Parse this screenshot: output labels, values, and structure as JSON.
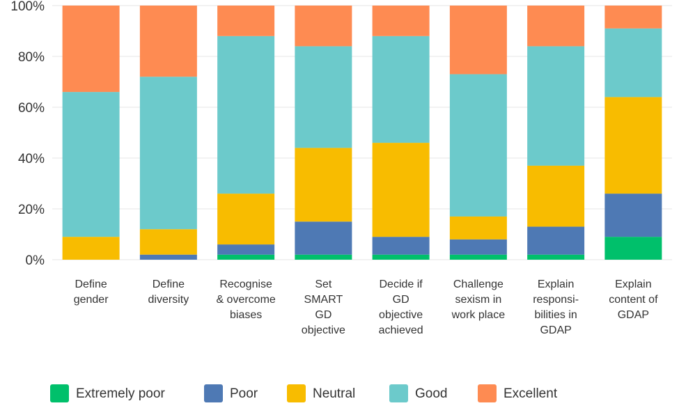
{
  "chart_data": {
    "type": "bar",
    "stacked": true,
    "categories": [
      [
        "Define",
        "gender"
      ],
      [
        "Define",
        "diversity"
      ],
      [
        "Recognise",
        "& overcome",
        "biases"
      ],
      [
        "Set",
        "SMART",
        "GD",
        "objective"
      ],
      [
        "Decide if",
        "GD",
        "objective",
        "achieved"
      ],
      [
        "Challenge",
        "sexism in",
        "work place"
      ],
      [
        "Explain",
        "responsi-",
        "bilities in",
        "GDAP"
      ],
      [
        "Explain",
        "content of",
        "GDAP"
      ]
    ],
    "series": [
      {
        "name": "Extremely poor",
        "color": "#00c06b",
        "values": [
          0,
          0,
          2,
          2,
          2,
          2,
          2,
          9
        ]
      },
      {
        "name": "Poor",
        "color": "#4e79b4",
        "values": [
          0,
          2,
          4,
          13,
          7,
          6,
          11,
          17
        ]
      },
      {
        "name": "Neutral",
        "color": "#f8bc00",
        "values": [
          9,
          10,
          20,
          29,
          37,
          9,
          24,
          38
        ]
      },
      {
        "name": "Good",
        "color": "#6ccacb",
        "values": [
          57,
          60,
          62,
          40,
          42,
          56,
          47,
          27
        ]
      },
      {
        "name": "Excellent",
        "color": "#fe8b52",
        "values": [
          34,
          28,
          12,
          16,
          12,
          27,
          16,
          9
        ]
      }
    ],
    "yticks": [
      "0%",
      "20%",
      "40%",
      "60%",
      "80%",
      "100%"
    ],
    "ylim": [
      0,
      100
    ],
    "grid": true,
    "legend_position": "bottom"
  }
}
